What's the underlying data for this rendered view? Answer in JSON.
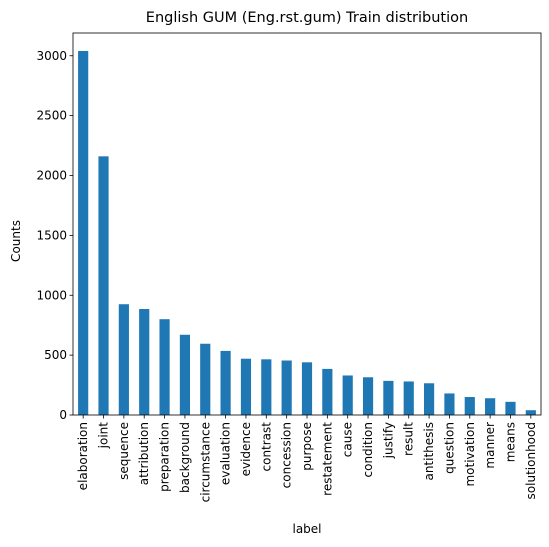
{
  "chart_data": {
    "type": "bar",
    "title": "English GUM (Eng.rst.gum) Train distribution",
    "xlabel": "label",
    "ylabel": "Counts",
    "ylim": [
      0,
      3190
    ],
    "yticks": [
      0,
      500,
      1000,
      1500,
      2000,
      2500,
      3000
    ],
    "grid": false,
    "legend": "none",
    "bar_color": "#1f77b4",
    "categories": [
      "elaboration",
      "joint",
      "sequence",
      "attribution",
      "preparation",
      "background",
      "circumstance",
      "evaluation",
      "evidence",
      "contrast",
      "concession",
      "purpose",
      "restatement",
      "cause",
      "condition",
      "justify",
      "result",
      "antithesis",
      "question",
      "motivation",
      "manner",
      "means",
      "solutionhood"
    ],
    "values": [
      3040,
      2160,
      925,
      885,
      800,
      670,
      595,
      535,
      470,
      465,
      455,
      440,
      385,
      330,
      315,
      285,
      280,
      265,
      180,
      150,
      140,
      110,
      40
    ]
  }
}
